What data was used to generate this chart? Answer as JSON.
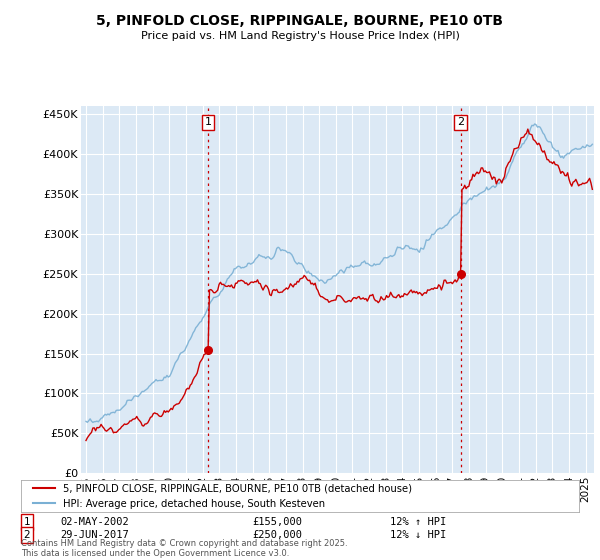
{
  "title": "5, PINFOLD CLOSE, RIPPINGALE, BOURNE, PE10 0TB",
  "subtitle": "Price paid vs. HM Land Registry's House Price Index (HPI)",
  "ylabel_ticks": [
    "£0",
    "£50K",
    "£100K",
    "£150K",
    "£200K",
    "£250K",
    "£300K",
    "£350K",
    "£400K",
    "£450K"
  ],
  "ytick_values": [
    0,
    50000,
    100000,
    150000,
    200000,
    250000,
    300000,
    350000,
    400000,
    450000
  ],
  "ylim": [
    0,
    460000
  ],
  "xlim_start": 1994.7,
  "xlim_end": 2025.5,
  "background_color": "#dce9f5",
  "plot_bg_color": "#dce9f5",
  "grid_color": "#ffffff",
  "sale1_date": "02-MAY-2002",
  "sale1_price": 155000,
  "sale1_pct": "12% ↑ HPI",
  "sale2_date": "29-JUN-2017",
  "sale2_price": 250000,
  "sale2_pct": "12% ↓ HPI",
  "legend_line1": "5, PINFOLD CLOSE, RIPPINGALE, BOURNE, PE10 0TB (detached house)",
  "legend_line2": "HPI: Average price, detached house, South Kesteven",
  "footnote": "Contains HM Land Registry data © Crown copyright and database right 2025.\nThis data is licensed under the Open Government Licence v3.0.",
  "red_color": "#cc0000",
  "blue_color": "#7ab0d4",
  "vline_color": "#cc0000",
  "marker1_x": 2002.33,
  "marker1_y": 155000,
  "marker2_x": 2017.49,
  "marker2_y": 250000
}
